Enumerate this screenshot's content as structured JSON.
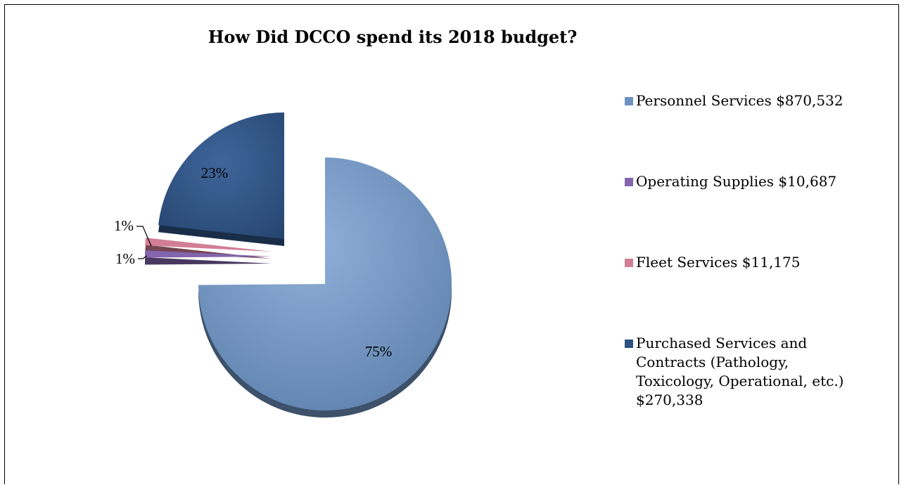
{
  "chart_data": {
    "type": "pie",
    "title": "How Did DCCO spend its 2018 budget?",
    "slices": [
      {
        "label": "Personnel Services   $870,532",
        "value": 870532,
        "percent_label": "75%",
        "color": "#6f93c0"
      },
      {
        "label": "Operating Supplies   $10,687",
        "value": 10687,
        "percent_label": "1%",
        "color": "#8265ad"
      },
      {
        "label": "Fleet Services   $11,175",
        "value": 11175,
        "percent_label": "1%",
        "color": "#d27e96"
      },
      {
        "label": "Purchased Services and Contracts (Pathology, Toxicology, Operational, etc.) $270,338",
        "value": 270338,
        "percent_label": "23%",
        "color": "#2e5282"
      }
    ],
    "legend_position": "right"
  }
}
